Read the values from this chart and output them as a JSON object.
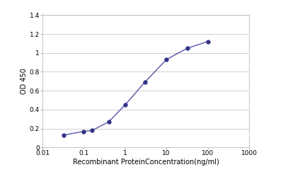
{
  "x_values": [
    0.032,
    0.1,
    0.16,
    0.4,
    1.0,
    3.0,
    10.0,
    32.0,
    100.0
  ],
  "y_values": [
    0.13,
    0.17,
    0.18,
    0.27,
    0.45,
    0.69,
    0.93,
    1.05,
    1.12
  ],
  "xlim": [
    0.01,
    1000
  ],
  "ylim": [
    0,
    1.4
  ],
  "yticks": [
    0,
    0.2,
    0.4,
    0.6,
    0.8,
    1.0,
    1.2,
    1.4
  ],
  "ytick_labels": [
    "0",
    "0.2",
    "0.4",
    "0.6",
    "0.8",
    "1",
    "1.2",
    "1.4"
  ],
  "xtick_labels": [
    "0.01",
    "0.1",
    "1",
    "10",
    "100",
    "1000"
  ],
  "xtick_positions": [
    0.01,
    0.1,
    1,
    10,
    100,
    1000
  ],
  "ylabel": "OD 450",
  "xlabel": "Recombinant ProteinConcentration(ng/ml)",
  "line_color": "#5555aa",
  "marker_color": "#333388",
  "bg_color": "#ffffff",
  "grid_color": "#c8c8c8",
  "marker_size": 4,
  "line_width": 1.0,
  "label_fontsize": 7,
  "tick_fontsize": 6.5
}
